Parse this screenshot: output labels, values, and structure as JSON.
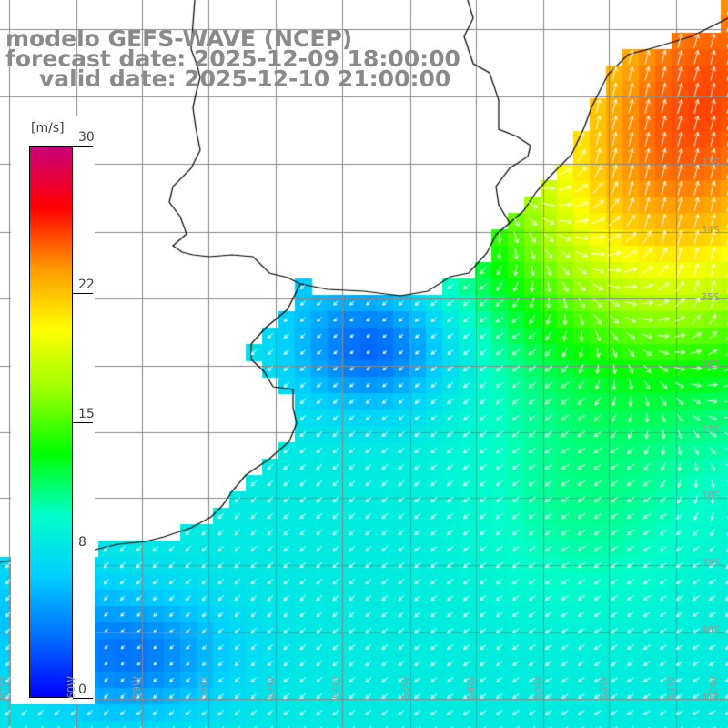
{
  "header": {
    "line1": "modelo GEFS-WAVE (NCEP)",
    "line2": "forecast date: 2025-12-09 18:00:00",
    "line3": "valid date: 2025-12-10 21:00:00"
  },
  "colorbar": {
    "unit": "[m/s]",
    "ticks": [
      {
        "label": "30",
        "value": 30
      },
      {
        "label": "22",
        "value": 22
      },
      {
        "label": "15",
        "value": 15
      },
      {
        "label": "8",
        "value": 8
      },
      {
        "label": "0",
        "value": 0
      }
    ],
    "colors": [
      "#0000ff",
      "#0070ff",
      "#00d0ff",
      "#00ffc8",
      "#00ff00",
      "#9aff00",
      "#ffff00",
      "#ff9a00",
      "#ff0000",
      "#c8007a"
    ]
  },
  "axes": {
    "lon_labels": [
      "61W",
      "60W",
      "59W",
      "58W",
      "57W",
      "56W",
      "55W",
      "54W",
      "53W",
      "52W",
      "51W",
      "50W"
    ],
    "lat_labels": [
      "33S",
      "34S",
      "35S",
      "36S",
      "37S",
      "38S",
      "39S",
      "40S",
      "41S"
    ]
  },
  "colors": {
    "land": "#ffffff",
    "coastline": "#000000",
    "grid": "#888888",
    "arrows": "#ffffff",
    "header_text": "#8a8a8a"
  },
  "chart_data": {
    "type": "heatmap",
    "variable": "wind speed",
    "unit": "m/s",
    "scale_range": [
      0,
      30
    ],
    "grid": true,
    "legend_position": "left colorbar",
    "regions": [
      {
        "area": "Rio de la Plata estuary",
        "speed_approx": 3
      },
      {
        "area": "southwest near coast",
        "speed_approx": 4
      },
      {
        "area": "central ocean",
        "speed_approx": 8
      },
      {
        "area": "offshore southern Brazil",
        "speed_approx": 15
      },
      {
        "area": "northeast corner",
        "speed_approx": 21
      }
    ]
  }
}
